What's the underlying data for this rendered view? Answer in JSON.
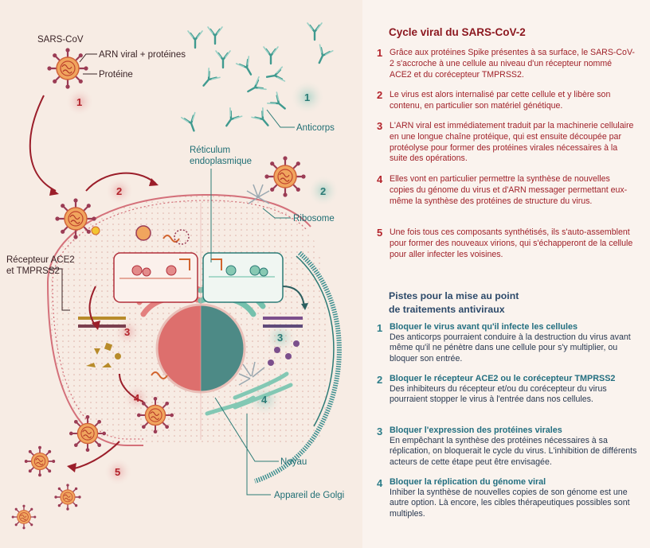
{
  "diagram": {
    "labels": {
      "sars_cov": "SARS-CoV",
      "rna_proteins": "ARN viral + protéines",
      "protein": "Protéine",
      "antibodies": "Anticorps",
      "reticulum_line1": "Réticulum",
      "reticulum_line2": "endoplasmique",
      "ribosome": "Ribosome",
      "receptor_line1": "Récepteur ACE2",
      "receptor_line2": "et TMPRSS2",
      "nucleus": "Noyau",
      "golgi": "Appareil de Golgi"
    },
    "steps_red": [
      "1",
      "2",
      "3",
      "4",
      "5"
    ],
    "steps_teal": [
      "1",
      "2",
      "3",
      "4"
    ],
    "colors": {
      "red": "#b3232b",
      "teal": "#2c7b76",
      "virus_orange": "#e87a48"
    }
  },
  "cycle": {
    "title": "Cycle viral du SARS-CoV-2",
    "items": [
      {
        "num": "1",
        "text": "Grâce aux protéines Spike présentes à sa surface, le SARS-CoV-2 s'accroche à une cellule au niveau d'un récepteur nommé ACE2 et du corécepteur TMPRSS2."
      },
      {
        "num": "2",
        "text": "Le virus est alors internalisé par cette cellule et y libère son contenu, en particulier son matériel génétique."
      },
      {
        "num": "3",
        "text": "L'ARN viral est immédiatement traduit par la machinerie cellulaire en une longue chaîne protéique, qui est ensuite découpée par protéolyse pour former des protéines virales nécessaires à la suite des opérations."
      },
      {
        "num": "4",
        "text": "Elles vont en particulier permettre la synthèse de nouvelles copies du génome du virus et d'ARN messager permettant eux-même la synthèse des protéines de structure du virus."
      },
      {
        "num": "5",
        "text": "Une fois tous ces composants synthétisés, ils s'auto-assemblent pour former des nouveaux virions, qui s'échapperont de la cellule pour aller infecter les voisines."
      }
    ]
  },
  "treatments": {
    "title_line1": "Pistes pour la mise au point",
    "title_line2": "de traitements antiviraux",
    "items": [
      {
        "num": "1",
        "heading": "Bloquer le virus avant qu'il infecte les cellules",
        "text": "Des anticorps pourraient conduire à la destruction du virus avant même qu'il ne pénètre dans une cellule pour s'y multiplier, ou bloquer son entrée."
      },
      {
        "num": "2",
        "heading": "Bloquer le récepteur ACE2 ou le corécepteur TMPRSS2",
        "text": "Des inhibiteurs du récepteur et/ou du corécepteur du virus pourraient stopper le virus à l'entrée dans nos cellules."
      },
      {
        "num": "3",
        "heading": "Bloquer l'expression des protéines virales",
        "text": "En empêchant la synthèse des protéines nécessaires à sa réplication, on bloquerait le cycle du virus. L'inhibition de différents acteurs de cette étape peut être envisagée."
      },
      {
        "num": "4",
        "heading": "Bloquer la réplication du génome viral",
        "text": "Inhiber la synthèse de nouvelles copies de son génome est une autre option. Là encore, les cibles thérapeutiques possibles sont multiples."
      }
    ]
  }
}
